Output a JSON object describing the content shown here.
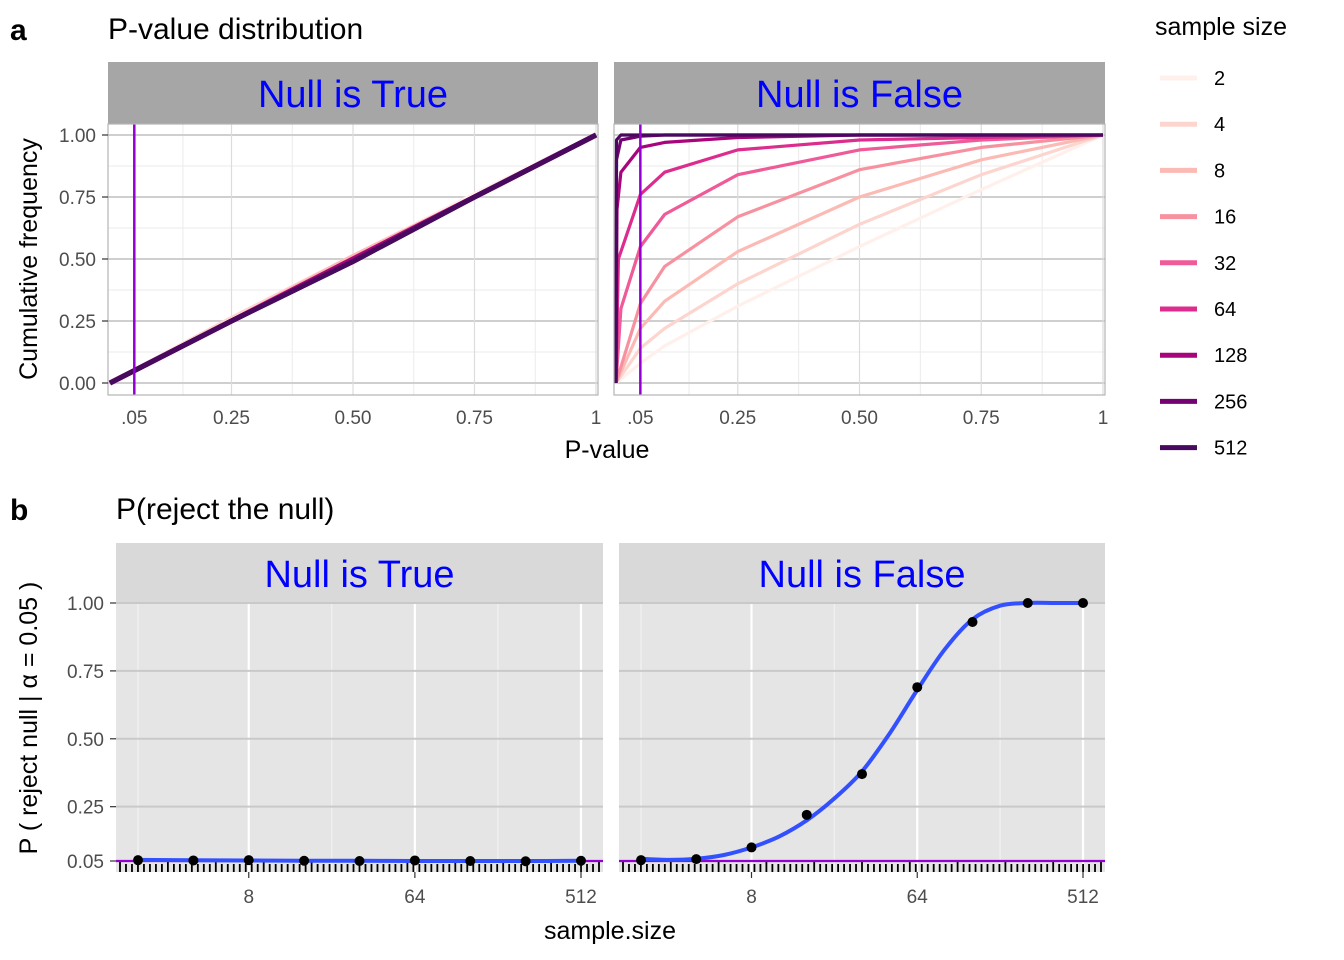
{
  "figure": {
    "panel_a_letter": "a",
    "panel_b_letter": "b"
  },
  "legend": {
    "title": "sample size",
    "entries": [
      {
        "label": "2",
        "color": "#fff0ec"
      },
      {
        "label": "4",
        "color": "#fdd5cf"
      },
      {
        "label": "8",
        "color": "#fcbab4"
      },
      {
        "label": "16",
        "color": "#f8919f"
      },
      {
        "label": "32",
        "color": "#ef5a98"
      },
      {
        "label": "64",
        "color": "#dc2c8e"
      },
      {
        "label": "128",
        "color": "#a8047c"
      },
      {
        "label": "256",
        "color": "#720370"
      },
      {
        "label": "512",
        "color": "#470a5e"
      }
    ]
  },
  "chart_data": [
    {
      "type": "line",
      "title": "P-value distribution",
      "xlabel": "P-value",
      "ylabel": "Cumulative frequency",
      "xlim": [
        0,
        1
      ],
      "ylim": [
        0,
        1
      ],
      "x_ticks": [
        0.05,
        0.25,
        0.5,
        0.75,
        1
      ],
      "x_tick_labels": [
        ".05",
        "0.25",
        "0.50",
        "0.75",
        "1"
      ],
      "y_ticks": [
        0,
        0.25,
        0.5,
        0.75,
        1
      ],
      "y_tick_labels": [
        "0.00",
        "0.25",
        "0.50",
        "0.75",
        "1.00"
      ],
      "reference_line": {
        "x": 0.05,
        "color": "#9400d3"
      },
      "grid": true,
      "legend_position": "right",
      "strip_color": "#0000ff",
      "strip_fill": "#a6a6a6",
      "facets": [
        {
          "label": "Null is True",
          "series": [
            {
              "sample_size": "2",
              "x": [
                0,
                0.05,
                0.25,
                0.5,
                0.75,
                1
              ],
              "y": [
                0,
                0.05,
                0.26,
                0.51,
                0.76,
                1
              ]
            },
            {
              "sample_size": "4",
              "x": [
                0,
                0.05,
                0.25,
                0.5,
                0.75,
                1
              ],
              "y": [
                0,
                0.05,
                0.26,
                0.51,
                0.75,
                1
              ]
            },
            {
              "sample_size": "8",
              "x": [
                0,
                0.05,
                0.25,
                0.5,
                0.75,
                1
              ],
              "y": [
                0,
                0.05,
                0.25,
                0.51,
                0.75,
                1
              ]
            },
            {
              "sample_size": "16",
              "x": [
                0,
                0.05,
                0.25,
                0.5,
                0.75,
                1
              ],
              "y": [
                0,
                0.05,
                0.25,
                0.5,
                0.75,
                1
              ]
            },
            {
              "sample_size": "32",
              "x": [
                0,
                0.05,
                0.25,
                0.5,
                0.75,
                1
              ],
              "y": [
                0,
                0.05,
                0.25,
                0.5,
                0.75,
                1
              ]
            },
            {
              "sample_size": "64",
              "x": [
                0,
                0.05,
                0.25,
                0.5,
                0.75,
                1
              ],
              "y": [
                0,
                0.05,
                0.25,
                0.5,
                0.75,
                1
              ]
            },
            {
              "sample_size": "128",
              "x": [
                0,
                0.05,
                0.25,
                0.5,
                0.75,
                1
              ],
              "y": [
                0,
                0.05,
                0.25,
                0.5,
                0.75,
                1
              ]
            },
            {
              "sample_size": "256",
              "x": [
                0,
                0.05,
                0.25,
                0.5,
                0.75,
                1
              ],
              "y": [
                0,
                0.05,
                0.25,
                0.49,
                0.75,
                1
              ]
            },
            {
              "sample_size": "512",
              "x": [
                0,
                0.05,
                0.25,
                0.5,
                0.75,
                1
              ],
              "y": [
                0,
                0.05,
                0.25,
                0.49,
                0.75,
                1
              ]
            }
          ]
        },
        {
          "label": "Null is False",
          "series": [
            {
              "sample_size": "2",
              "x": [
                0,
                0.05,
                0.1,
                0.25,
                0.5,
                0.75,
                1
              ],
              "y": [
                0,
                0.08,
                0.15,
                0.31,
                0.55,
                0.78,
                1
              ]
            },
            {
              "sample_size": "4",
              "x": [
                0,
                0.05,
                0.1,
                0.25,
                0.5,
                0.75,
                1
              ],
              "y": [
                0,
                0.14,
                0.22,
                0.4,
                0.64,
                0.84,
                1
              ]
            },
            {
              "sample_size": "8",
              "x": [
                0,
                0.05,
                0.1,
                0.25,
                0.5,
                0.75,
                1
              ],
              "y": [
                0,
                0.22,
                0.33,
                0.53,
                0.75,
                0.9,
                1
              ]
            },
            {
              "sample_size": "16",
              "x": [
                0,
                0.05,
                0.1,
                0.25,
                0.5,
                0.75,
                1
              ],
              "y": [
                0,
                0.32,
                0.47,
                0.67,
                0.86,
                0.95,
                1
              ]
            },
            {
              "sample_size": "32",
              "x": [
                0,
                0.01,
                0.05,
                0.1,
                0.25,
                0.5,
                0.75,
                1
              ],
              "y": [
                0,
                0.3,
                0.55,
                0.68,
                0.84,
                0.94,
                0.98,
                1
              ]
            },
            {
              "sample_size": "64",
              "x": [
                0,
                0.005,
                0.05,
                0.1,
                0.25,
                0.5,
                0.75,
                1
              ],
              "y": [
                0,
                0.5,
                0.76,
                0.85,
                0.94,
                0.98,
                0.99,
                1
              ]
            },
            {
              "sample_size": "128",
              "x": [
                0,
                0.002,
                0.01,
                0.05,
                0.1,
                0.25,
                0.5,
                1
              ],
              "y": [
                0,
                0.7,
                0.85,
                0.95,
                0.97,
                0.99,
                1,
                1
              ]
            },
            {
              "sample_size": "256",
              "x": [
                0,
                0.001,
                0.01,
                0.05,
                0.1,
                1
              ],
              "y": [
                0,
                0.9,
                0.98,
                0.995,
                1,
                1
              ]
            },
            {
              "sample_size": "512",
              "x": [
                0,
                0.001,
                0.01,
                1
              ],
              "y": [
                0,
                0.98,
                1,
                1
              ]
            }
          ]
        }
      ]
    },
    {
      "type": "line",
      "title": "P(reject the null)",
      "xlabel": "sample.size",
      "ylabel": "P ( reject null | α = 0.05 )",
      "x_scale": "log2",
      "xlim": [
        2,
        512
      ],
      "ylim": [
        0.05,
        1
      ],
      "x_ticks": [
        8,
        64,
        512
      ],
      "x_tick_labels": [
        "8",
        "64",
        "512"
      ],
      "y_ticks": [
        0.05,
        0.25,
        0.5,
        0.75,
        1
      ],
      "y_tick_labels": [
        "0.05",
        "0.25",
        "0.50",
        "0.75",
        "1.00"
      ],
      "reference_line": {
        "y": 0.05,
        "color": "#9400d3"
      },
      "rug": true,
      "grid": true,
      "smooth_color": "#3350ff",
      "point_color": "#000000",
      "strip_color": "#0000ff",
      "strip_fill": "#d9d9d9",
      "facets": [
        {
          "label": "Null is True",
          "points": {
            "x": [
              2,
              4,
              8,
              16,
              32,
              64,
              128,
              256,
              512
            ],
            "y": [
              0.053,
              0.052,
              0.053,
              0.051,
              0.05,
              0.052,
              0.05,
              0.049,
              0.051
            ]
          },
          "smooth": {
            "x": [
              2,
              4,
              8,
              16,
              32,
              64,
              128,
              256,
              512
            ],
            "y": [
              0.054,
              0.053,
              0.052,
              0.051,
              0.051,
              0.05,
              0.05,
              0.05,
              0.051
            ]
          }
        },
        {
          "label": "Null is False",
          "points": {
            "x": [
              2,
              4,
              8,
              16,
              32,
              64,
              128,
              256,
              512
            ],
            "y": [
              0.053,
              0.057,
              0.1,
              0.22,
              0.37,
              0.69,
              0.93,
              1.0,
              1.0
            ]
          },
          "smooth": {
            "x": [
              2,
              2.83,
              4,
              5.66,
              8,
              11.3,
              16,
              22.6,
              32,
              45.3,
              64,
              90.5,
              128,
              181,
              256,
              362,
              512
            ],
            "y": [
              0.058,
              0.054,
              0.058,
              0.072,
              0.1,
              0.14,
              0.2,
              0.28,
              0.38,
              0.52,
              0.68,
              0.83,
              0.94,
              0.99,
              1.0,
              1.0,
              1.0
            ]
          }
        }
      ]
    }
  ]
}
